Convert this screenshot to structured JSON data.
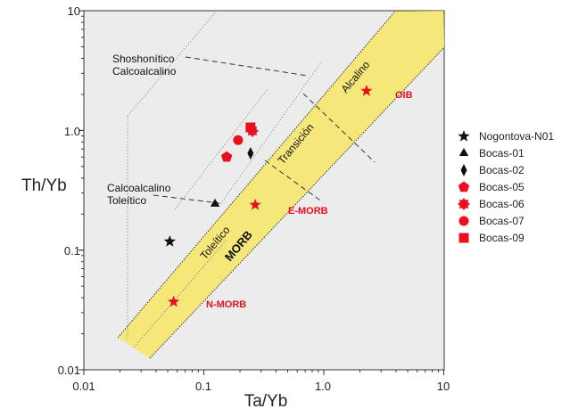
{
  "chart_data": {
    "type": "scatter",
    "xlabel": "Ta/Yb",
    "ylabel": "Th/Yb",
    "xscale": "log",
    "yscale": "log",
    "xlim": [
      0.01,
      10
    ],
    "ylim": [
      0.01,
      10
    ],
    "x_ticks": [
      "0.01",
      "0.1",
      "1.0",
      "10"
    ],
    "y_ticks": [
      "0.01",
      "0.1",
      "1.0",
      "10"
    ],
    "grid": false,
    "legend_position": "right",
    "colors": {
      "background": "#ececec",
      "band": "#f5e77a",
      "red": "#e8101e",
      "black": "#111111"
    },
    "series": [
      {
        "name": "Nogontova-N01",
        "marker": "star",
        "color": "#111111",
        "points": [
          [
            0.052,
            0.118
          ]
        ]
      },
      {
        "name": "Bocas-01",
        "marker": "triangle",
        "color": "#111111",
        "points": [
          [
            0.124,
            0.243
          ]
        ]
      },
      {
        "name": "Bocas-02",
        "marker": "diamond",
        "color": "#111111",
        "points": [
          [
            0.245,
            0.645
          ]
        ]
      },
      {
        "name": "Bocas-05",
        "marker": "pentagon",
        "color": "#e8101e",
        "points": [
          [
            0.155,
            0.6
          ]
        ]
      },
      {
        "name": "Bocas-06",
        "marker": "burst",
        "color": "#e8101e",
        "points": [
          [
            0.254,
            0.99
          ]
        ]
      },
      {
        "name": "Bocas-07",
        "marker": "circle",
        "color": "#e8101e",
        "points": [
          [
            0.193,
            0.83
          ]
        ]
      },
      {
        "name": "Bocas-09",
        "marker": "square",
        "color": "#e8101e",
        "points": [
          [
            0.245,
            1.06
          ]
        ]
      }
    ],
    "reference_points": [
      {
        "label": "N-MORB",
        "x": 0.056,
        "y": 0.037
      },
      {
        "label": "E-MORB",
        "x": 0.268,
        "y": 0.239
      },
      {
        "label": "OIB",
        "x": 2.27,
        "y": 2.14
      }
    ],
    "morb_band": {
      "upper_edge": [
        [
          0.0192,
          0.0186
        ],
        [
          3.93,
          9.9
        ]
      ],
      "lower_edge": [
        [
          0.0355,
          0.0125
        ],
        [
          10.1,
          4.96
        ]
      ]
    },
    "annotations": {
      "shoshonitico": "Shoshonítico",
      "calcoalcalino_top": "Calcoalcalino",
      "calcoalcalino_bottom": "Calcoalcalino",
      "toleitico_left": "Toleítico",
      "toleitico_band": "Toleítico",
      "morb": "MORB",
      "transicion": "Transición",
      "alcalino": "Alcalino"
    }
  }
}
